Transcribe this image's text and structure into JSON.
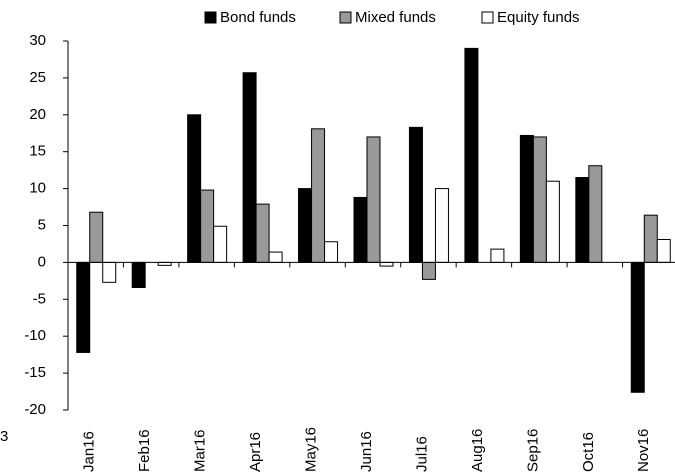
{
  "chart_data": {
    "type": "bar",
    "annotation": "3",
    "categories": [
      "Jan16",
      "Feb16",
      "Mar16",
      "Apr16",
      "May16",
      "Jun16",
      "Jul16",
      "Aug16",
      "Sep16",
      "Oct16",
      "Nov16"
    ],
    "series": [
      {
        "name": "Bond funds",
        "color": "#000000",
        "values": [
          -12.2,
          -3.4,
          20,
          25.7,
          10,
          8.8,
          18.3,
          29,
          17.2,
          11.5,
          -17.6
        ]
      },
      {
        "name": "Mixed funds",
        "color": "#999999",
        "values": [
          6.8,
          0,
          9.8,
          7.9,
          18.1,
          17,
          -2.3,
          0,
          17,
          13.1,
          6.4
        ]
      },
      {
        "name": "Equity funds",
        "color": "#ffffff",
        "values": [
          -2.7,
          -0.4,
          4.9,
          1.4,
          2.8,
          -0.5,
          10,
          1.8,
          11,
          0,
          3.1
        ]
      }
    ],
    "ylim": [
      -20,
      30
    ],
    "yticks": [
      -20,
      -15,
      -10,
      -5,
      0,
      5,
      10,
      15,
      20,
      25,
      30
    ],
    "legend": "top"
  }
}
